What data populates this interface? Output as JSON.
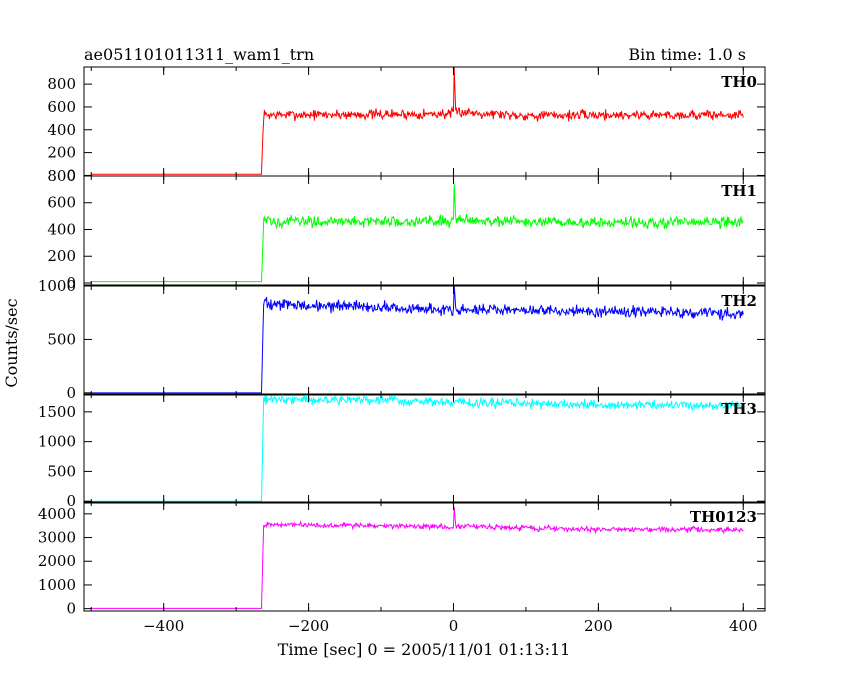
{
  "chart_data": {
    "type": "line",
    "title": "ae051101011311_wam1_trn",
    "subtitle": "Bin time: 1.0 s",
    "xlabel": "Time [sec] 0 = 2005/11/01 01:13:11",
    "ylabel": "Counts/sec",
    "xlim": [
      -510,
      430
    ],
    "x_ticks": [
      -400,
      -200,
      0,
      200,
      400
    ],
    "x_tick_labels": [
      "−400",
      "−200",
      "0",
      "200",
      "400"
    ],
    "bin_time_s": 1.0,
    "grid": false,
    "series": [
      {
        "name": "TH0",
        "color": "#ff0000",
        "ylim": [
          -5,
          950
        ],
        "y_ticks": [
          0,
          200,
          400,
          600,
          800
        ],
        "y_tick_labels": [
          "0",
          "200",
          "400",
          "600",
          "800"
        ],
        "points": [
          [
            -500,
            10
          ],
          [
            -265,
            10
          ],
          [
            -262,
            530
          ],
          [
            -100,
            535
          ],
          [
            0,
            540
          ],
          [
            1,
            950
          ],
          [
            3,
            560
          ],
          [
            100,
            525
          ],
          [
            200,
            530
          ],
          [
            400,
            530
          ]
        ]
      },
      {
        "name": "TH1",
        "color": "#00ff00",
        "ylim": [
          -15,
          800
        ],
        "y_ticks": [
          0,
          200,
          400,
          600,
          800
        ],
        "y_tick_labels": [
          "0",
          "200",
          "400",
          "600",
          "800"
        ],
        "points": [
          [
            -500,
            10
          ],
          [
            -265,
            10
          ],
          [
            -262,
            460
          ],
          [
            -100,
            460
          ],
          [
            0,
            465
          ],
          [
            1,
            780
          ],
          [
            3,
            480
          ],
          [
            100,
            455
          ],
          [
            200,
            450
          ],
          [
            400,
            455
          ]
        ]
      },
      {
        "name": "TH2",
        "color": "#0000ff",
        "ylim": [
          -20,
          1000
        ],
        "y_ticks": [
          0,
          500,
          1000
        ],
        "y_tick_labels": [
          "0",
          "500",
          "1000"
        ],
        "points": [
          [
            -500,
            0
          ],
          [
            -265,
            0
          ],
          [
            -262,
            830
          ],
          [
            -100,
            800
          ],
          [
            0,
            780
          ],
          [
            1,
            1000
          ],
          [
            3,
            780
          ],
          [
            100,
            770
          ],
          [
            200,
            760
          ],
          [
            400,
            750
          ]
        ]
      },
      {
        "name": "TH3",
        "color": "#00ffff",
        "ylim": [
          -30,
          1800
        ],
        "y_ticks": [
          0,
          500,
          1000,
          1500
        ],
        "y_tick_labels": [
          "0",
          "500",
          "1000",
          "1500"
        ],
        "points": [
          [
            -500,
            0
          ],
          [
            -265,
            0
          ],
          [
            -262,
            1720
          ],
          [
            -100,
            1690
          ],
          [
            0,
            1660
          ],
          [
            100,
            1640
          ],
          [
            200,
            1620
          ],
          [
            400,
            1600
          ]
        ]
      },
      {
        "name": "TH0123",
        "color": "#ff00ff",
        "ylim": [
          -100,
          4500
        ],
        "y_ticks": [
          0,
          1000,
          2000,
          3000,
          4000
        ],
        "y_tick_labels": [
          "0",
          "1000",
          "2000",
          "3000",
          "4000"
        ],
        "points": [
          [
            -500,
            10
          ],
          [
            -265,
            10
          ],
          [
            -262,
            3550
          ],
          [
            -100,
            3500
          ],
          [
            0,
            3450
          ],
          [
            1,
            4300
          ],
          [
            3,
            3500
          ],
          [
            100,
            3400
          ],
          [
            200,
            3350
          ],
          [
            400,
            3330
          ]
        ]
      }
    ]
  }
}
